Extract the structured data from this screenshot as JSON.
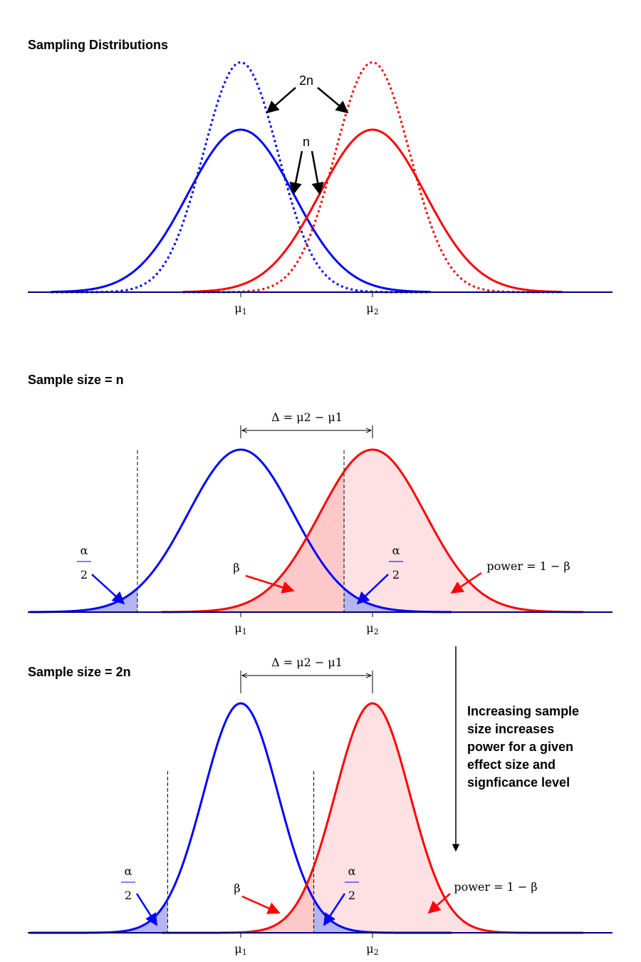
{
  "chart_data": [
    {
      "type": "line",
      "title": "Sampling Distributions",
      "xticks": [
        "μ1",
        "μ2"
      ],
      "series": [
        {
          "mean": 0,
          "sd": 1,
          "style": "solid",
          "color": "#0000ff"
        },
        {
          "mean": 0,
          "sd": 0.707,
          "style": "dotted",
          "color": "#0000ff"
        },
        {
          "mean": 2.5,
          "sd": 1,
          "style": "solid",
          "color": "#ff0000"
        },
        {
          "mean": 2.5,
          "sd": 0.707,
          "style": "dotted",
          "color": "#ff0000"
        }
      ],
      "annotations": {
        "two_n": "2n",
        "n": "n"
      }
    },
    {
      "type": "area",
      "title": "Sample size = n",
      "xticks": [
        "μ1",
        "μ2"
      ],
      "delta_label": "Δ = μ2 − μ1",
      "sd": 1,
      "means": [
        0,
        2.5
      ],
      "critical_values": [
        -1.96,
        1.96
      ],
      "labels": {
        "alpha_num": "α",
        "alpha_den": "2",
        "beta": "β",
        "power": "power = 1 − β"
      }
    },
    {
      "type": "area",
      "title": "Sample size = 2n",
      "xticks": [
        "μ1",
        "μ2"
      ],
      "delta_label": "Δ = μ2 − μ1",
      "sd": 0.707,
      "means": [
        0,
        2.5
      ],
      "critical_values": [
        -1.386,
        1.386
      ],
      "labels": {
        "alpha_num": "α",
        "alpha_den": "2",
        "beta": "β",
        "power": "power = 1 − β"
      }
    }
  ],
  "note": {
    "lines": [
      "Increasing sample",
      "size increases",
      "power for a given",
      "effect size and",
      "signficance level"
    ]
  },
  "colors": {
    "blue": "#0000ff",
    "red": "#ff0000",
    "blue_fill": "#b4b4f0",
    "red_fill": "#ffc8c8",
    "red_fill_light": "#ffe0e3",
    "axis": "#00007a"
  }
}
